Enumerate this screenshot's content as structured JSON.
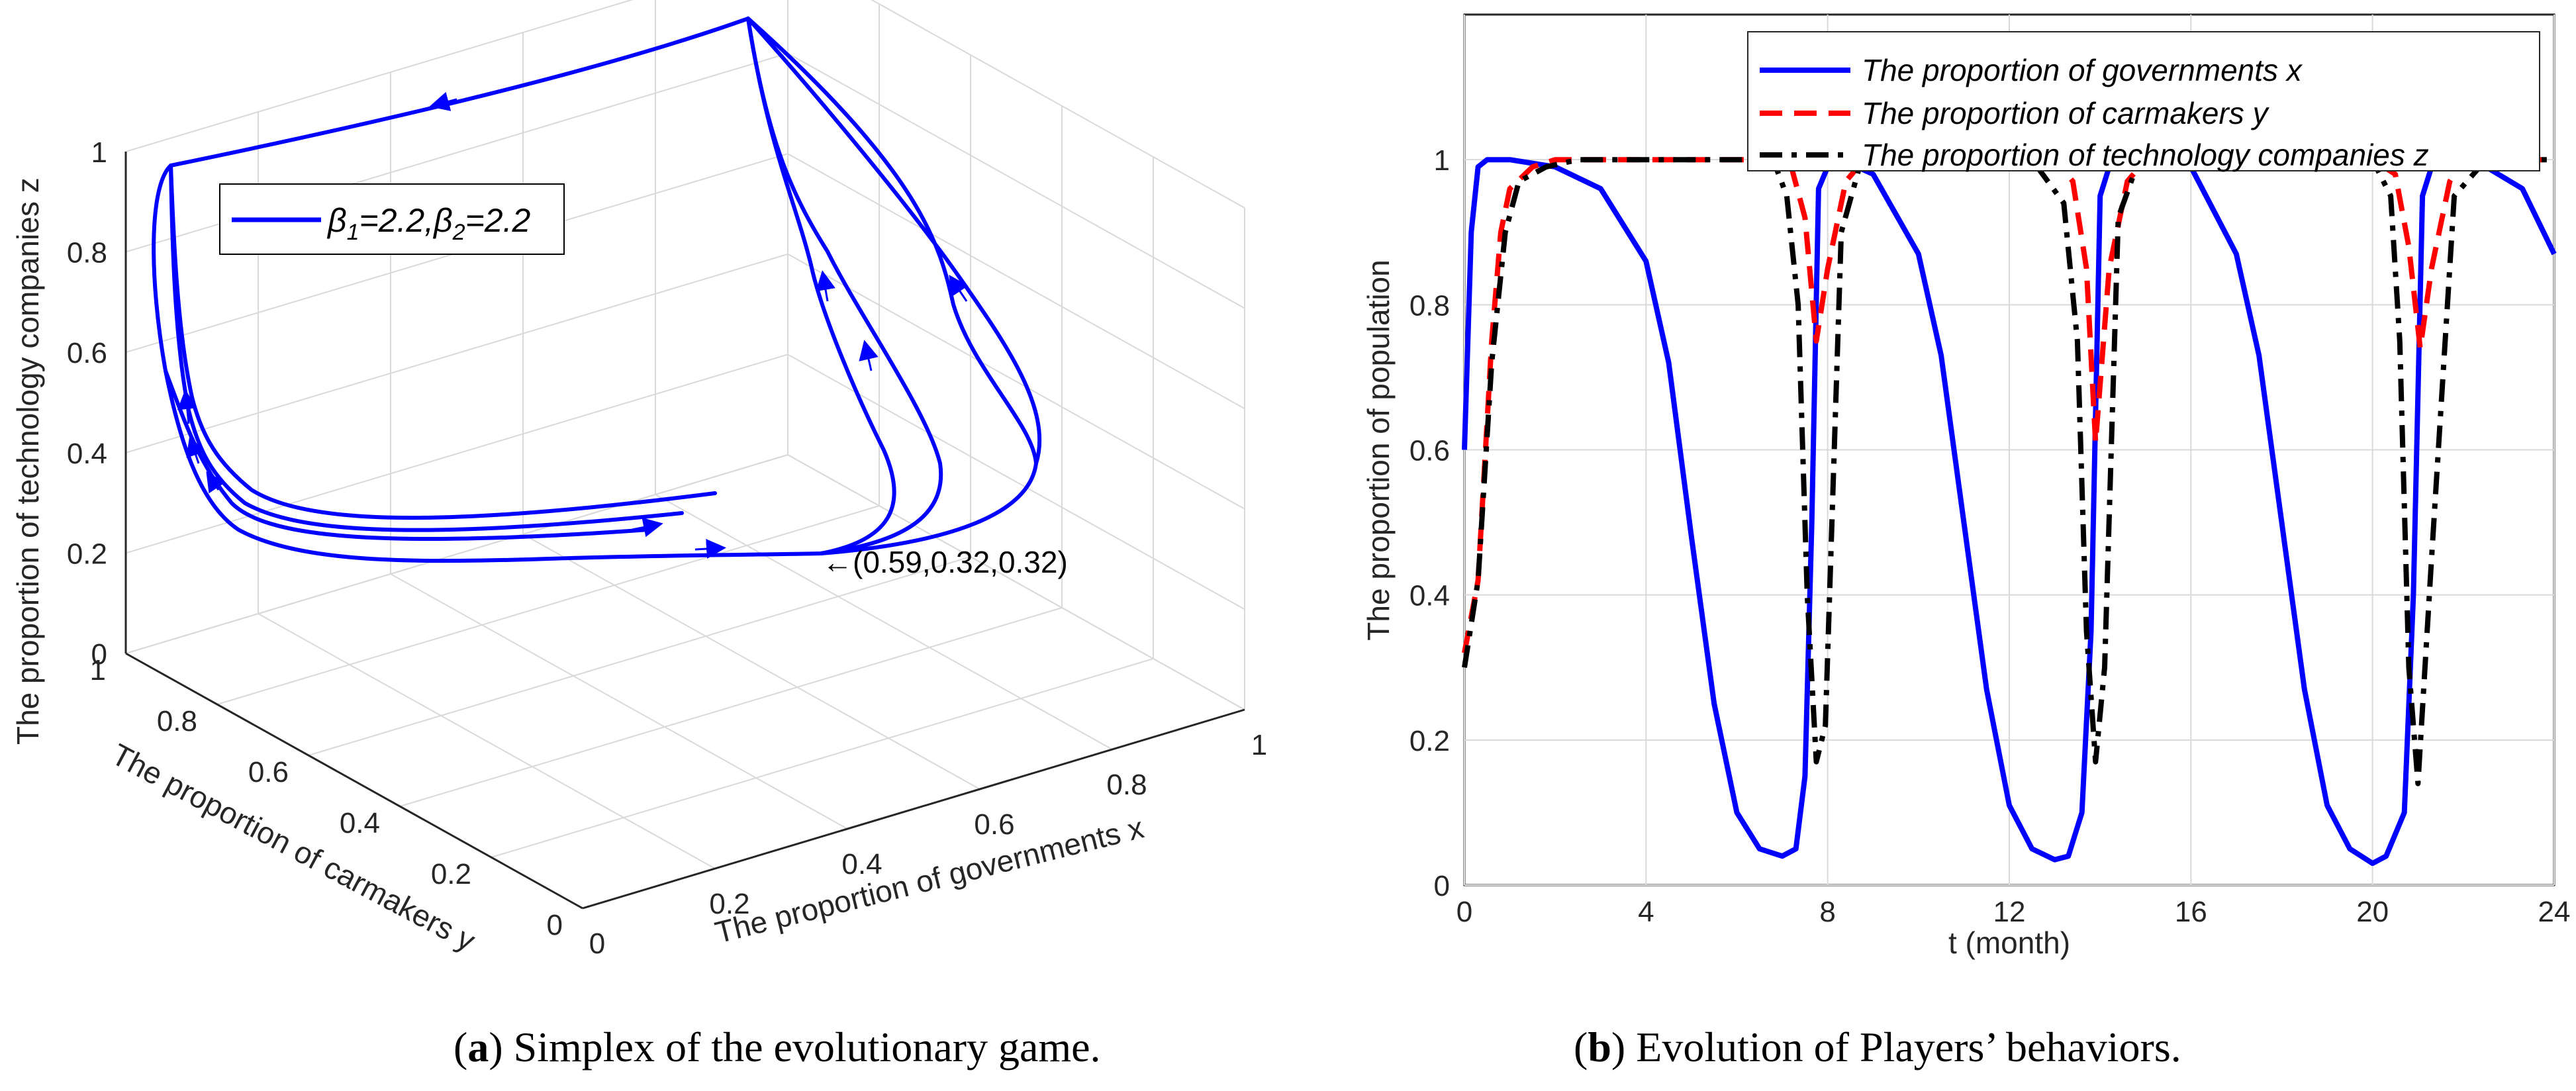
{
  "captions": {
    "a": {
      "label": "a",
      "text": ") Simplex of the evolutionary game."
    },
    "b": {
      "label": "b",
      "text": ") Evolution of Players’ behaviors."
    }
  },
  "colors": {
    "blue": "#0000ff",
    "red": "#ff0000",
    "black": "#000000",
    "grid": "#d9d9d9"
  },
  "chart_data": [
    {
      "type": "line",
      "subtype": "3d-trajectory",
      "xlabel": "The proportion of governments x",
      "ylabel": "The proportion of carmakers y",
      "zlabel": "The proportion of technology companies z",
      "x_ticks": [
        "0",
        "0.2",
        "0.4",
        "0.6",
        "0.8",
        "1"
      ],
      "y_ticks": [
        "0",
        "0.2",
        "0.4",
        "0.6",
        "0.8",
        "1"
      ],
      "z_ticks": [
        "0",
        "0.2",
        "0.4",
        "0.6",
        "0.8",
        "1"
      ],
      "xlim": [
        0,
        1
      ],
      "ylim": [
        0,
        1
      ],
      "zlim": [
        0,
        1
      ],
      "legend": {
        "text": "β1=2.2,β2=2.2",
        "location": "top-left"
      },
      "annotation": "←(0.59,0.32,0.32)",
      "start_point": [
        0.59,
        0.32,
        0.32
      ],
      "grid": true
    },
    {
      "type": "line",
      "xlabel": "t (month)",
      "ylabel": "The proportion of population",
      "xlim": [
        0,
        24
      ],
      "ylim": [
        0,
        1.2
      ],
      "x_ticks": [
        "0",
        "4",
        "8",
        "12",
        "16",
        "20",
        "24"
      ],
      "y_ticks": [
        "0",
        "0.2",
        "0.4",
        "0.6",
        "0.8",
        "1"
      ],
      "grid": true,
      "legend_location": "top-right",
      "series": [
        {
          "name": "The proportion of governments x",
          "style": "solid",
          "color": "#0000ff",
          "x": [
            0,
            0.15,
            0.3,
            0.5,
            1,
            2,
            3,
            4,
            4.5,
            5,
            5.5,
            6,
            6.5,
            7,
            7.3,
            7.5,
            7.65,
            7.8,
            8,
            8.3,
            9,
            10,
            10.5,
            11,
            11.5,
            12,
            12.5,
            13,
            13.3,
            13.6,
            13.8,
            14,
            14.2,
            14.6,
            15,
            16,
            17,
            17.5,
            18,
            18.5,
            19,
            19.5,
            20,
            20.3,
            20.7,
            20.9,
            21.1,
            21.3,
            21.7,
            22.5,
            23.3,
            24
          ],
          "y": [
            0.6,
            0.9,
            0.99,
            1.0,
            1.0,
            0.99,
            0.96,
            0.86,
            0.72,
            0.48,
            0.25,
            0.1,
            0.05,
            0.04,
            0.05,
            0.15,
            0.5,
            0.96,
            0.99,
            1.0,
            0.98,
            0.87,
            0.73,
            0.5,
            0.27,
            0.11,
            0.05,
            0.035,
            0.04,
            0.1,
            0.35,
            0.95,
            0.99,
            1.0,
            1.0,
            0.99,
            0.87,
            0.73,
            0.5,
            0.27,
            0.11,
            0.05,
            0.03,
            0.04,
            0.1,
            0.4,
            0.95,
            0.99,
            1.0,
            0.99,
            0.96,
            0.87
          ]
        },
        {
          "name": "The proportion of carmakers y",
          "style": "dashed",
          "color": "#ff0000",
          "x": [
            0,
            0.3,
            0.6,
            0.8,
            1,
            1.5,
            2,
            6.5,
            7.2,
            7.5,
            7.75,
            8,
            8.4,
            8.8,
            9.5,
            13,
            13.4,
            13.7,
            13.9,
            14.2,
            14.6,
            15,
            16,
            20,
            20.5,
            20.8,
            21.05,
            21.3,
            21.7,
            22,
            24
          ],
          "y": [
            0.32,
            0.42,
            0.75,
            0.9,
            0.96,
            0.99,
            1.0,
            1.0,
            0.99,
            0.92,
            0.75,
            0.85,
            0.97,
            1.0,
            1.0,
            1.0,
            0.97,
            0.85,
            0.61,
            0.85,
            0.97,
            1.0,
            1.0,
            1.0,
            0.98,
            0.88,
            0.74,
            0.85,
            0.97,
            1.0,
            1.0
          ]
        },
        {
          "name": "The proportion of technology companies z",
          "style": "dashdot",
          "color": "#000000",
          "x": [
            0,
            0.3,
            0.6,
            0.9,
            1.2,
            1.8,
            2.5,
            6.8,
            7.1,
            7.35,
            7.55,
            7.75,
            7.95,
            8.3,
            8.7,
            9.2,
            12.5,
            13.2,
            13.5,
            13.7,
            13.9,
            14.1,
            14.4,
            14.8,
            15.3,
            20,
            20.4,
            20.6,
            20.8,
            21.0,
            21.3,
            21.8,
            22.5,
            24
          ],
          "y": [
            0.3,
            0.42,
            0.72,
            0.9,
            0.97,
            0.99,
            1.0,
            1.0,
            0.95,
            0.8,
            0.4,
            0.17,
            0.22,
            0.9,
            0.99,
            1.0,
            1.0,
            0.94,
            0.75,
            0.35,
            0.17,
            0.3,
            0.92,
            0.99,
            1.0,
            1.0,
            0.95,
            0.75,
            0.3,
            0.14,
            0.45,
            0.95,
            1.0,
            1.0
          ]
        }
      ]
    }
  ]
}
